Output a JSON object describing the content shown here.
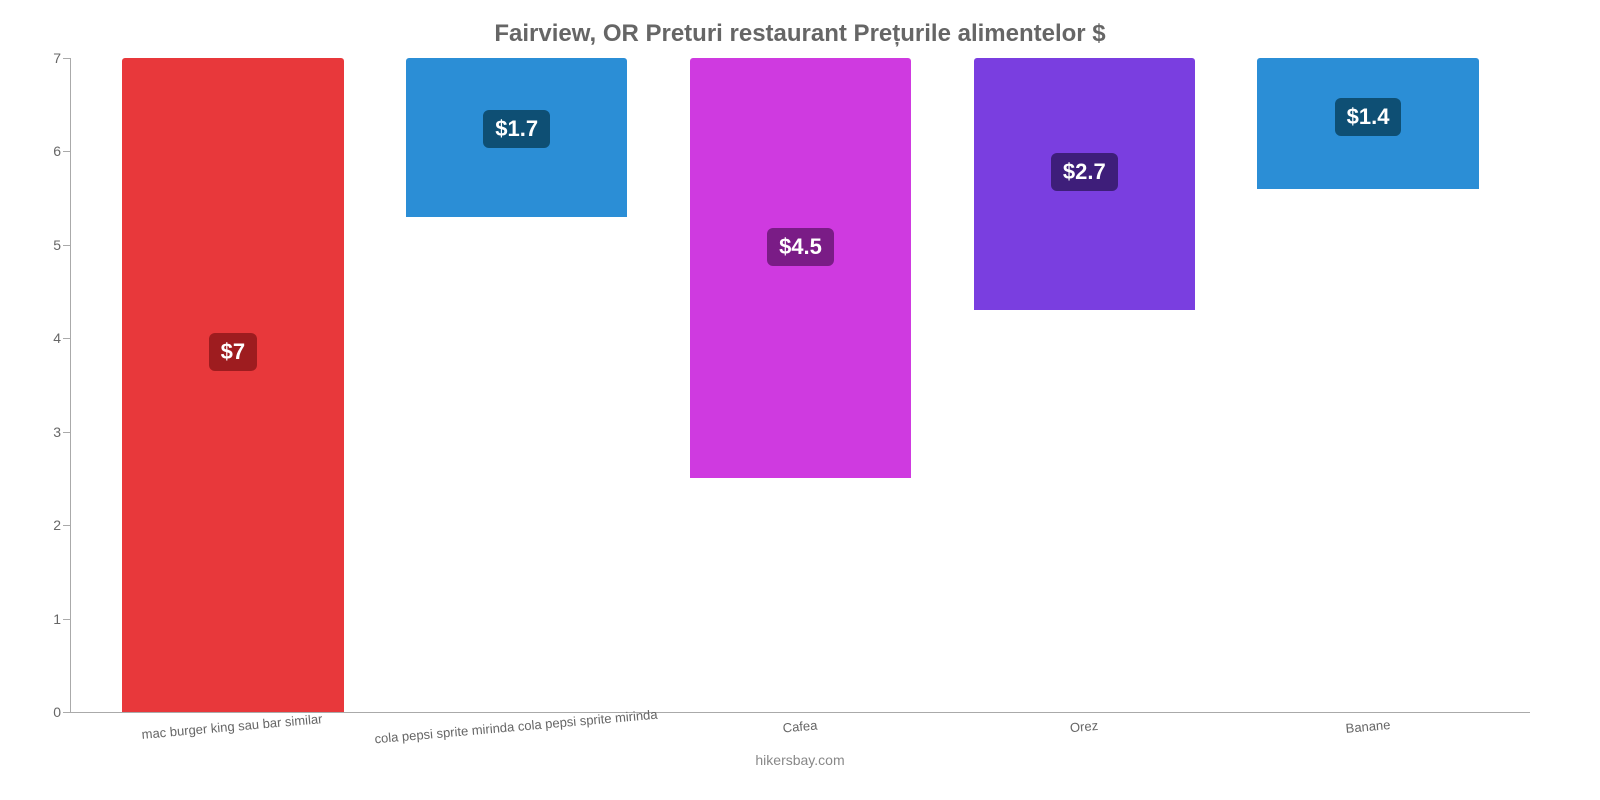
{
  "chart": {
    "type": "bar",
    "title": "Fairview, OR Preturi restaurant Prețurile alimentelor $",
    "title_fontsize": 24,
    "title_color": "#666666",
    "background_color": "#ffffff",
    "axis_color": "#aaaaaa",
    "ylim": [
      0,
      7
    ],
    "ytick_step": 1,
    "yticks": [
      0,
      1,
      2,
      3,
      4,
      5,
      6,
      7
    ],
    "tick_label_color": "#666666",
    "tick_label_fontsize": 14,
    "bar_width_ratio": 0.78,
    "bar_border_radius": 3,
    "categories": [
      "mac burger king sau bar similar",
      "cola pepsi sprite mirinda cola pepsi sprite mirinda",
      "Cafea",
      "Orez",
      "Banane"
    ],
    "values": [
      7,
      1.7,
      4.5,
      2.7,
      1.4
    ],
    "value_labels": [
      "$7",
      "$1.7",
      "$4.5",
      "$2.7",
      "$1.4"
    ],
    "bar_colors": [
      "#e8383b",
      "#2b8ed6",
      "#cf3ae0",
      "#7a3ee0",
      "#2b8ed6"
    ],
    "badge_colors": [
      "#9e1c1f",
      "#0e4f74",
      "#7a1c86",
      "#3e1e7a",
      "#0e4f74"
    ],
    "badge_text_color": "#ffffff",
    "badge_fontsize": 22,
    "xlabel_fontsize": 13,
    "xlabel_color": "#666666",
    "xlabel_rotate_deg": -5,
    "footer": "hikersbay.com",
    "footer_color": "#888888",
    "footer_fontsize": 14
  }
}
